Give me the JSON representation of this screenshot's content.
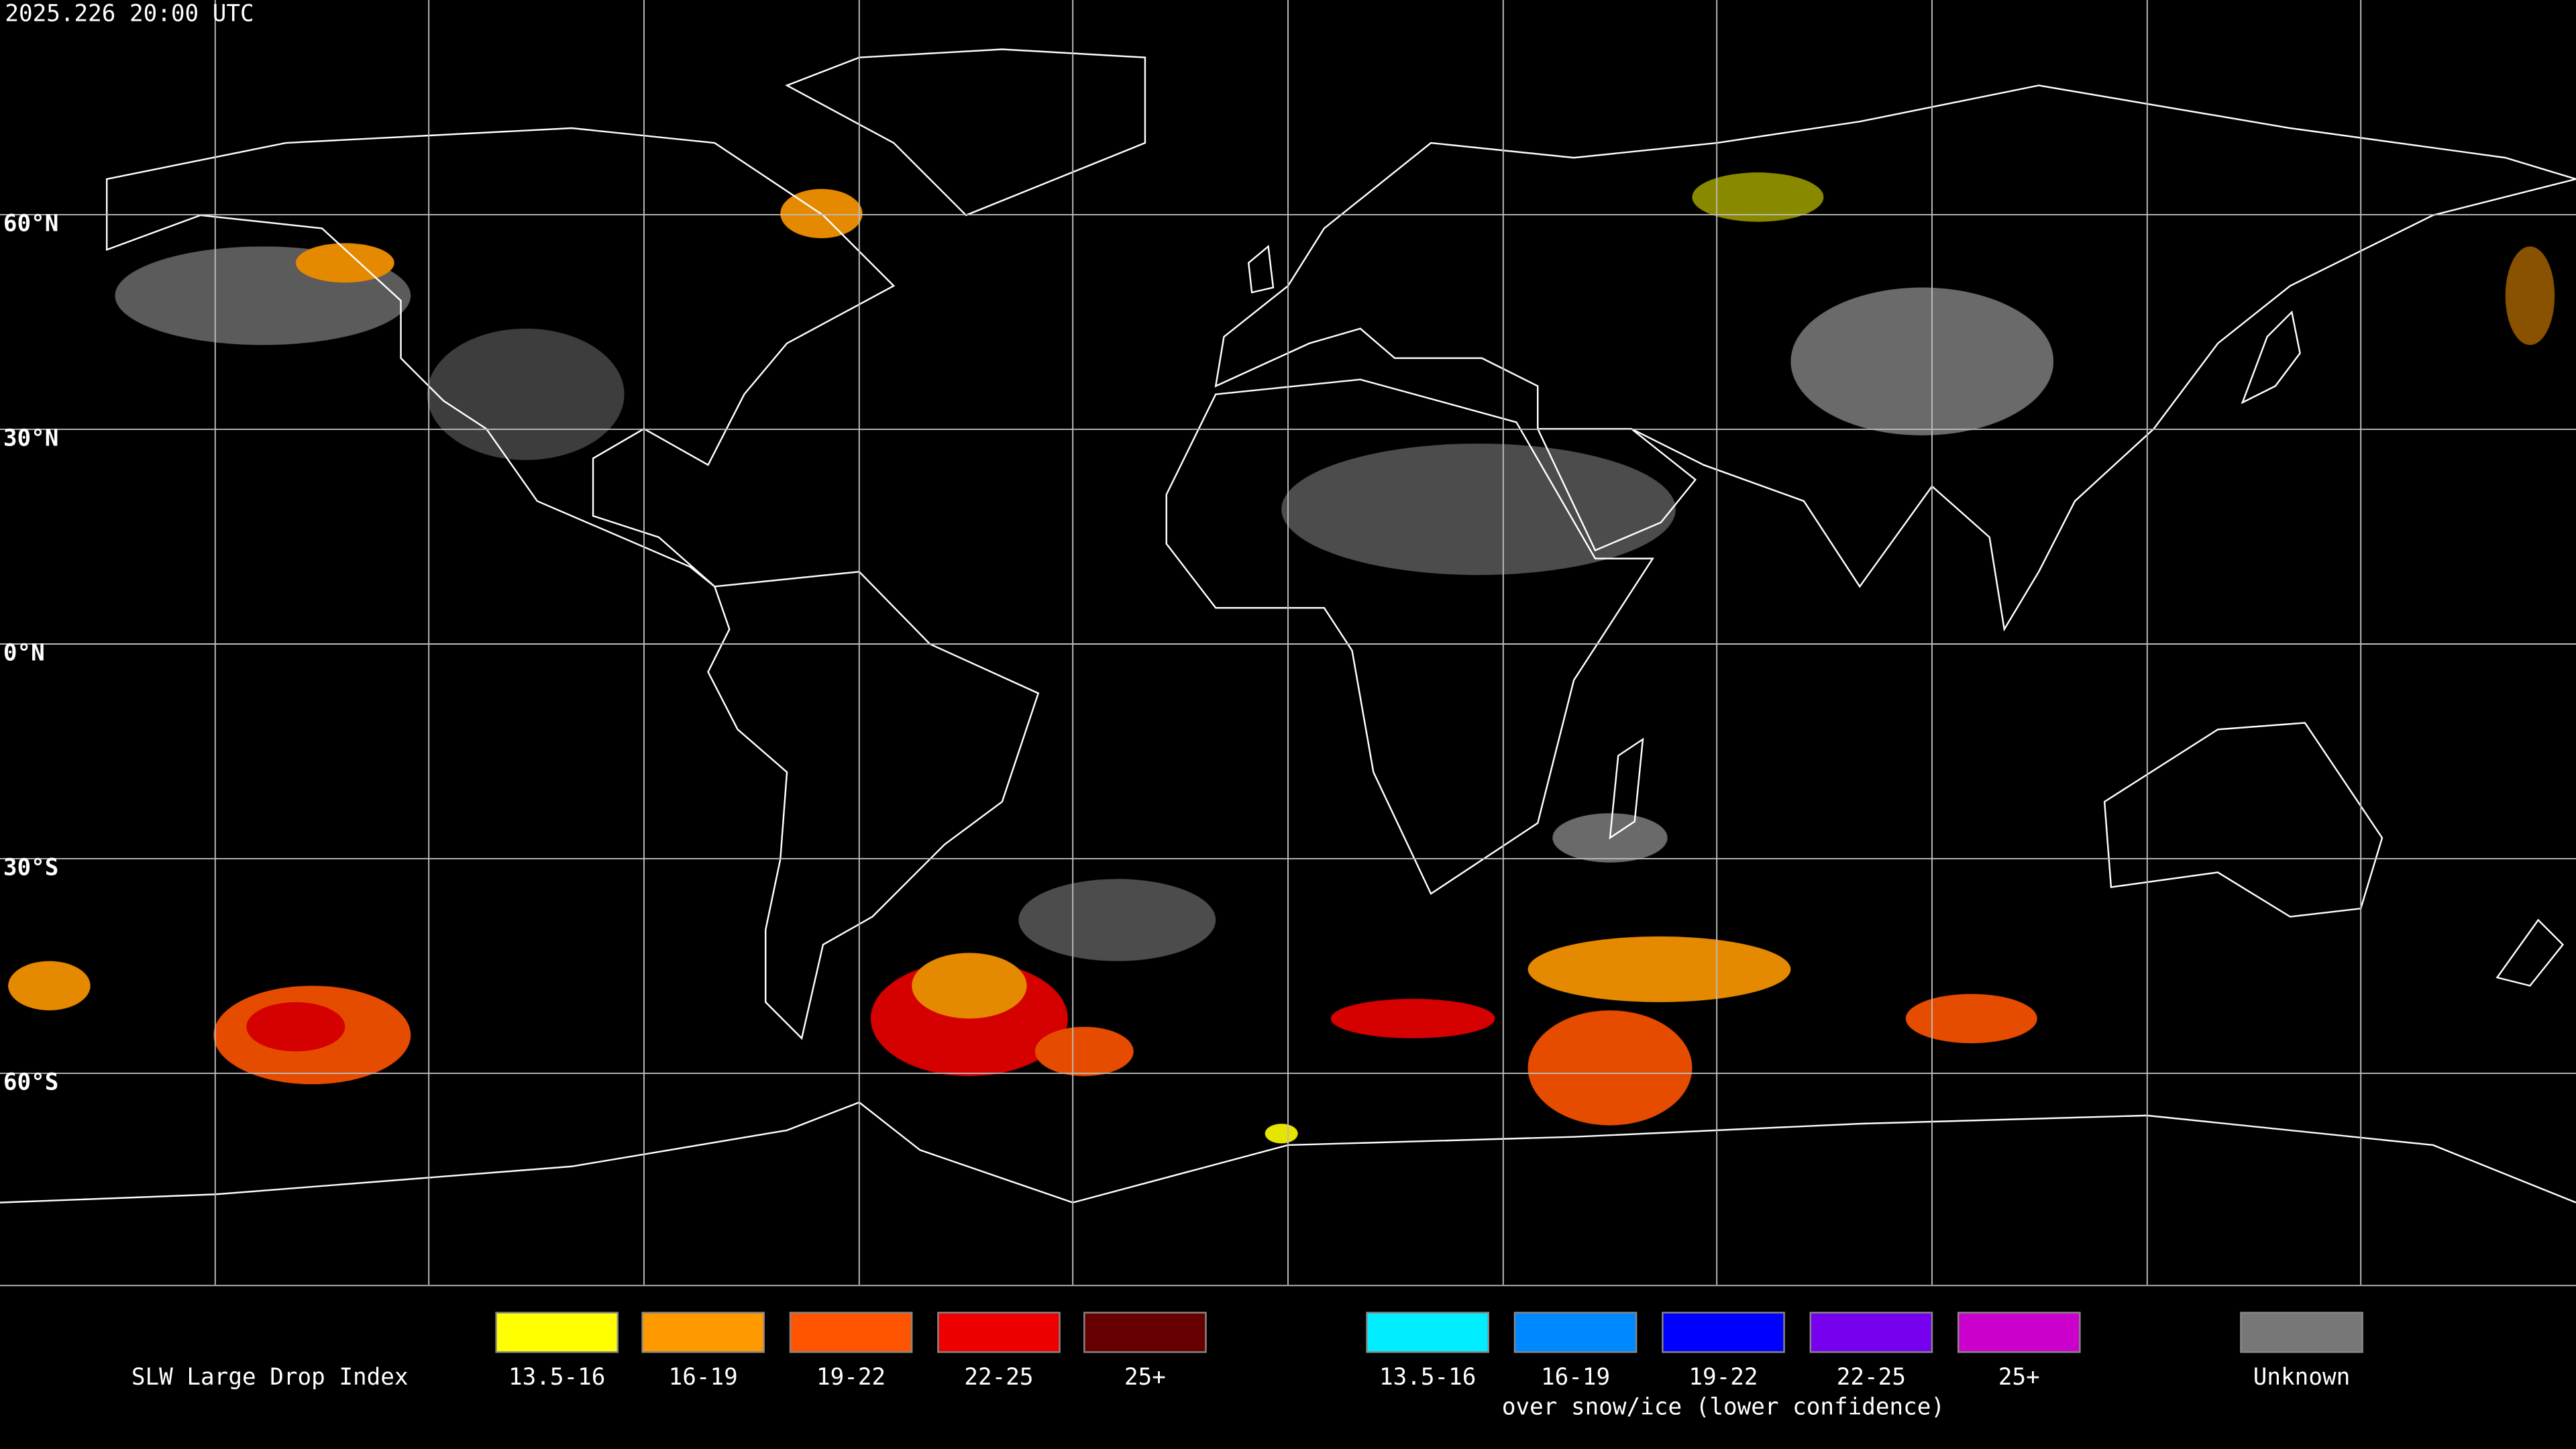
{
  "header": {
    "timestamp": "2025.226 20:00 UTC"
  },
  "map": {
    "latitude_labels": [
      "60°N",
      "30°N",
      "0°N",
      "30°S",
      "60°S"
    ]
  },
  "legend": {
    "title": "SLW Large Drop Index",
    "groups": [
      {
        "items": [
          {
            "label": "13.5-16",
            "color": "#ffff00"
          },
          {
            "label": "16-19",
            "color": "#ff9900"
          },
          {
            "label": "19-22",
            "color": "#ff5500"
          },
          {
            "label": "22-25",
            "color": "#ee0000"
          },
          {
            "label": "25+",
            "color": "#660000"
          }
        ]
      },
      {
        "items": [
          {
            "label": "13.5-16",
            "color": "#00eeff"
          },
          {
            "label": "16-19",
            "color": "#0088ff"
          },
          {
            "label": "19-22",
            "color": "#0000ff"
          },
          {
            "label": "22-25",
            "color": "#7700ee"
          },
          {
            "label": "25+",
            "color": "#cc00cc"
          }
        ],
        "caption": "over snow/ice (lower confidence)"
      },
      {
        "items": [
          {
            "label": "Unknown",
            "color": "#777777"
          }
        ]
      }
    ]
  }
}
